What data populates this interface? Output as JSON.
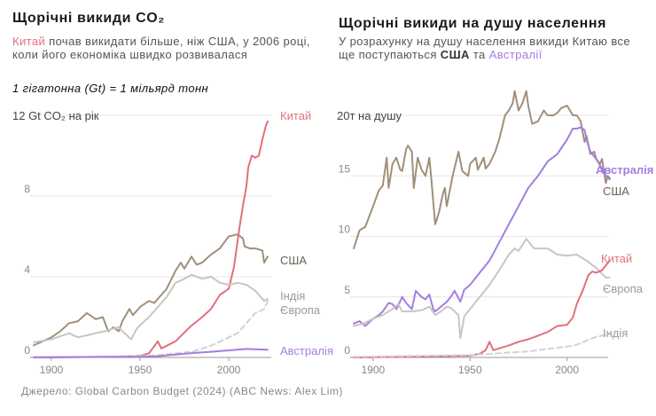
{
  "left": {
    "title": "Щорічні викиди CO₂",
    "subtitle_china": "Китай",
    "subtitle_rest": " почав викидати більше, ніж США, у 2006 році, коли його економіка швидко розвивалася",
    "note": "1 гігатонна (Gt) = 1 мільярд тонн"
  },
  "right": {
    "title": "Щорічні викиди на душу населення",
    "subtitle_pre": "У розрахунку на душу населення викиди Китаю все ще поступаються ",
    "subtitle_usa": "США",
    "subtitle_mid": " та ",
    "subtitle_aus": "Австралії"
  },
  "source": "Джерело: Global Carbon Budget (2024) (ABC News: Alex Lim)",
  "colors": {
    "china": "#e2707b",
    "usa": "#a0907a",
    "india": "#c6c6c6",
    "europe": "#c6c6c6",
    "australia": "#a47ee0",
    "grid": "#e6e6e6",
    "axis": "#888888"
  },
  "chart_data": [
    {
      "type": "line",
      "title": "Щорічні викиди CO₂",
      "ylabel": "12 Gt CO₂ на рік",
      "ylim": [
        0,
        12
      ],
      "xlim": [
        1890,
        2023
      ],
      "y_ticks": [
        0,
        4,
        8
      ],
      "y_tick_labels": [
        "0",
        "4",
        "8"
      ],
      "x_ticks": [
        1900,
        1950,
        2000
      ],
      "x_tick_labels": [
        "1900",
        "1950",
        "2000"
      ],
      "series": [
        {
          "name": "Китай",
          "key": "china",
          "dashed": false,
          "x": [
            1890,
            1900,
            1920,
            1940,
            1950,
            1955,
            1960,
            1962,
            1970,
            1978,
            1985,
            1990,
            1995,
            2000,
            2003,
            2006,
            2008,
            2010,
            2011,
            2013,
            2015,
            2017,
            2019,
            2021,
            2022
          ],
          "y": [
            0,
            0,
            0.02,
            0.05,
            0.08,
            0.2,
            0.8,
            0.45,
            0.8,
            1.5,
            2.0,
            2.4,
            3.1,
            3.4,
            4.5,
            6.4,
            7.5,
            8.5,
            9.4,
            10.0,
            9.9,
            10.0,
            10.8,
            11.5,
            11.7
          ]
        },
        {
          "name": "США",
          "key": "usa",
          "dashed": false,
          "x": [
            1890,
            1895,
            1900,
            1905,
            1910,
            1915,
            1920,
            1925,
            1929,
            1932,
            1935,
            1938,
            1940,
            1944,
            1946,
            1950,
            1955,
            1958,
            1960,
            1965,
            1970,
            1973,
            1975,
            1979,
            1982,
            1985,
            1990,
            1995,
            2000,
            2005,
            2008,
            2009,
            2012,
            2015,
            2019,
            2020,
            2022
          ],
          "y": [
            0.6,
            0.8,
            1.0,
            1.3,
            1.7,
            1.8,
            2.2,
            1.9,
            2.0,
            1.3,
            1.5,
            1.3,
            1.8,
            2.4,
            2.1,
            2.5,
            2.8,
            2.7,
            2.9,
            3.4,
            4.3,
            4.7,
            4.4,
            5.0,
            4.6,
            4.7,
            5.1,
            5.4,
            6.0,
            6.1,
            5.9,
            5.5,
            5.4,
            5.4,
            5.3,
            4.7,
            5.0
          ]
        },
        {
          "name": "Європа",
          "key": "europe",
          "dashed": false,
          "x": [
            1890,
            1900,
            1910,
            1915,
            1920,
            1930,
            1938,
            1940,
            1945,
            1948,
            1950,
            1955,
            1960,
            1965,
            1970,
            1975,
            1979,
            1985,
            1990,
            1995,
            2000,
            2005,
            2010,
            2015,
            2020,
            2022
          ],
          "y": [
            0.75,
            0.9,
            1.2,
            1.0,
            1.1,
            1.3,
            1.5,
            1.3,
            0.9,
            1.4,
            1.6,
            2.0,
            2.5,
            3.0,
            3.7,
            3.9,
            4.1,
            3.9,
            4.0,
            3.7,
            3.6,
            3.7,
            3.6,
            3.3,
            2.8,
            2.9
          ]
        },
        {
          "name": "Індія",
          "key": "india",
          "dashed": true,
          "x": [
            1890,
            1920,
            1950,
            1960,
            1970,
            1980,
            1990,
            2000,
            2005,
            2010,
            2015,
            2020,
            2022
          ],
          "y": [
            0.01,
            0.03,
            0.06,
            0.12,
            0.2,
            0.3,
            0.58,
            1.0,
            1.2,
            1.7,
            2.2,
            2.4,
            2.8
          ]
        },
        {
          "name": "Австралія",
          "key": "australia",
          "dashed": false,
          "x": [
            1890,
            1950,
            1960,
            1970,
            1980,
            1990,
            2000,
            2010,
            2015,
            2020,
            2022
          ],
          "y": [
            0.01,
            0.03,
            0.06,
            0.14,
            0.22,
            0.28,
            0.35,
            0.42,
            0.41,
            0.39,
            0.38
          ]
        }
      ],
      "end_labels": [
        {
          "text": "Китай",
          "key": "china"
        },
        {
          "text": "США",
          "key": "usa"
        },
        {
          "text": "Індія",
          "key": "india_label"
        },
        {
          "text": "Європа",
          "key": "europe_label"
        },
        {
          "text": "Австралія",
          "key": "australia"
        }
      ]
    },
    {
      "type": "line",
      "title": "Щорічні викиди на душу населення",
      "ylabel": "20т на душу",
      "ylim": [
        0,
        20
      ],
      "xlim": [
        1890,
        2023
      ],
      "y_ticks": [
        0,
        5,
        10,
        15
      ],
      "y_tick_labels": [
        "0",
        "5",
        "10",
        "15"
      ],
      "x_ticks": [
        1900,
        1950,
        2000
      ],
      "x_tick_labels": [
        "1900",
        "1950",
        "2000"
      ],
      "series": [
        {
          "name": "США",
          "key": "usa",
          "dashed": false,
          "x": [
            1890,
            1893,
            1896,
            1900,
            1903,
            1905,
            1907,
            1908,
            1910,
            1912,
            1914,
            1915,
            1917,
            1918,
            1920,
            1921,
            1923,
            1925,
            1927,
            1929,
            1930,
            1932,
            1934,
            1936,
            1937,
            1938,
            1941,
            1944,
            1946,
            1949,
            1950,
            1953,
            1954,
            1957,
            1958,
            1960,
            1963,
            1965,
            1968,
            1970,
            1972,
            1973,
            1975,
            1977,
            1979,
            1980,
            1982,
            1985,
            1988,
            1990,
            1993,
            1995,
            1997,
            2000,
            2003,
            2005,
            2007,
            2009,
            2010,
            2012,
            2014,
            2015,
            2017,
            2018,
            2020,
            2021,
            2022
          ],
          "y": [
            9.0,
            10.5,
            10.8,
            12.5,
            13.8,
            14.2,
            16.5,
            14.0,
            16.0,
            16.5,
            15.5,
            15.4,
            17.2,
            17.5,
            17.0,
            14.0,
            16.5,
            15.5,
            15.0,
            16.5,
            14.8,
            11.0,
            12.0,
            13.5,
            14.0,
            12.5,
            15.0,
            17.0,
            15.4,
            15.0,
            16.0,
            16.5,
            15.5,
            16.5,
            15.6,
            16.0,
            17.0,
            18.0,
            20.0,
            20.4,
            21.0,
            22.0,
            20.4,
            21.0,
            22.0,
            20.8,
            19.3,
            19.5,
            20.4,
            20.0,
            20.0,
            20.2,
            20.6,
            20.8,
            20.0,
            20.0,
            19.5,
            17.8,
            18.3,
            16.8,
            17.0,
            16.4,
            16.0,
            16.4,
            14.4,
            15.0,
            14.8
          ]
        },
        {
          "name": "Австралія",
          "key": "australia",
          "dashed": false,
          "x": [
            1890,
            1893,
            1896,
            1900,
            1903,
            1905,
            1908,
            1910,
            1912,
            1915,
            1917,
            1920,
            1922,
            1925,
            1927,
            1929,
            1931,
            1932,
            1935,
            1938,
            1940,
            1942,
            1945,
            1947,
            1950,
            1955,
            1960,
            1965,
            1970,
            1975,
            1980,
            1985,
            1990,
            1995,
            2000,
            2003,
            2005,
            2007,
            2009,
            2010,
            2012,
            2015,
            2018,
            2020,
            2022
          ],
          "y": [
            2.8,
            3.0,
            2.6,
            3.2,
            3.5,
            3.8,
            4.5,
            4.4,
            4.0,
            5.0,
            4.5,
            4.0,
            5.5,
            5.0,
            4.8,
            5.2,
            4.0,
            3.8,
            4.2,
            4.6,
            5.0,
            5.5,
            4.6,
            5.6,
            6.0,
            7.0,
            8.0,
            9.5,
            11.0,
            12.5,
            14.0,
            15.0,
            16.2,
            16.8,
            18.0,
            18.9,
            18.9,
            19.0,
            18.8,
            18.0,
            17.0,
            16.4,
            15.6,
            15.0,
            14.7
          ]
        },
        {
          "name": "Європа",
          "key": "europe",
          "dashed": false,
          "x": [
            1890,
            1895,
            1900,
            1905,
            1910,
            1913,
            1915,
            1920,
            1925,
            1929,
            1932,
            1935,
            1938,
            1940,
            1944,
            1945,
            1947,
            1950,
            1955,
            1960,
            1965,
            1970,
            1973,
            1975,
            1979,
            1983,
            1985,
            1990,
            1995,
            2000,
            2005,
            2010,
            2015,
            2020,
            2022
          ],
          "y": [
            2.6,
            2.8,
            3.2,
            3.5,
            4.0,
            4.4,
            3.8,
            3.8,
            3.9,
            4.2,
            3.5,
            3.8,
            4.2,
            4.1,
            3.5,
            1.6,
            3.4,
            4.0,
            5.0,
            6.0,
            7.2,
            8.5,
            9.0,
            8.8,
            9.8,
            9.0,
            9.0,
            9.0,
            8.5,
            8.4,
            8.5,
            8.0,
            7.4,
            6.6,
            6.6
          ]
        },
        {
          "name": "Китай",
          "key": "china",
          "dashed": false,
          "x": [
            1890,
            1950,
            1955,
            1958,
            1960,
            1962,
            1970,
            1975,
            1980,
            1985,
            1990,
            1995,
            2000,
            2003,
            2005,
            2008,
            2011,
            2013,
            2015,
            2018,
            2020,
            2022
          ],
          "y": [
            0,
            0.15,
            0.3,
            0.6,
            1.3,
            0.6,
            1.0,
            1.3,
            1.5,
            1.8,
            2.1,
            2.6,
            2.7,
            3.3,
            4.4,
            5.5,
            6.8,
            7.1,
            7.0,
            7.2,
            7.6,
            8.0
          ]
        },
        {
          "name": "Індія",
          "key": "india",
          "dashed": true,
          "x": [
            1890,
            1950,
            1960,
            1970,
            1980,
            1990,
            2000,
            2005,
            2010,
            2015,
            2020,
            2022
          ],
          "y": [
            0.05,
            0.2,
            0.3,
            0.4,
            0.5,
            0.7,
            0.9,
            1.05,
            1.4,
            1.7,
            1.85,
            2.0
          ]
        }
      ],
      "end_labels": [
        {
          "text": "Австралія",
          "key": "australia"
        },
        {
          "text": "США",
          "key": "usa"
        },
        {
          "text": "Китай",
          "key": "china"
        },
        {
          "text": "Європа",
          "key": "europe_label"
        },
        {
          "text": "Індія",
          "key": "india_label"
        }
      ]
    }
  ]
}
